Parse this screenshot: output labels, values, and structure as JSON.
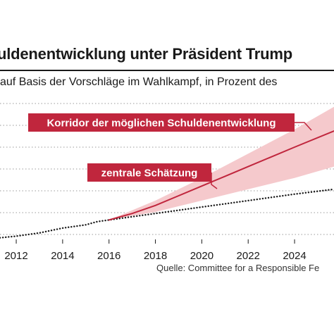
{
  "chart_data": {
    "type": "line",
    "title": "uldenentwicklung unter Präsident Trump",
    "subtitle": "auf Basis der Vorschläge im Wahlkampf, in Prozent des",
    "x_ticks": [
      "2012",
      "2014",
      "2016",
      "2018",
      "2020",
      "2022",
      "2024"
    ],
    "xlim": [
      2011.3,
      2025.7
    ],
    "ylim": [
      70,
      112
    ],
    "grid": true,
    "series": [
      {
        "name": "",
        "style": "dotted",
        "color": "#1a1a1a",
        "points": [
          [
            2011.3,
            70.5
          ],
          [
            2012,
            71
          ],
          [
            2013,
            72
          ],
          [
            2014,
            73.5
          ],
          [
            2015,
            74.5
          ],
          [
            2015.5,
            75.5
          ],
          [
            2016,
            76
          ],
          [
            2017,
            77
          ],
          [
            2018,
            78
          ],
          [
            2019,
            79
          ],
          [
            2020,
            80
          ],
          [
            2021,
            81
          ],
          [
            2022,
            82
          ],
          [
            2023,
            83
          ],
          [
            2024,
            84
          ],
          [
            2025.7,
            85.5
          ]
        ]
      },
      {
        "name": "zentrale Schätzung",
        "style": "solid",
        "color": "#c0263d",
        "points": [
          [
            2016,
            76
          ],
          [
            2017,
            78
          ],
          [
            2018,
            80.5
          ],
          [
            2019,
            83.5
          ],
          [
            2020,
            86.5
          ],
          [
            2021,
            89.5
          ],
          [
            2022,
            92.5
          ],
          [
            2023,
            95.5
          ],
          [
            2024,
            98.5
          ],
          [
            2025.7,
            103.5
          ]
        ]
      }
    ],
    "band": {
      "name": "Korridor der möglichen Schuldenentwicklung",
      "color": "#f5c9cc",
      "upper": [
        [
          2016,
          76
        ],
        [
          2018,
          82
        ],
        [
          2020,
          89
        ],
        [
          2022,
          96.5
        ],
        [
          2024,
          104
        ],
        [
          2025.7,
          111
        ]
      ],
      "lower": [
        [
          2016,
          76
        ],
        [
          2018,
          78.5
        ],
        [
          2020,
          82
        ],
        [
          2022,
          85.5
        ],
        [
          2024,
          89
        ],
        [
          2025.7,
          92.5
        ]
      ]
    },
    "annotations": [
      {
        "text": "Korridor der möglichen Schuldenentwicklung",
        "color": "#c0263d"
      },
      {
        "text": "zentrale Schätzung",
        "color": "#c0263d"
      }
    ]
  },
  "source": "Quelle: Committee for a Responsible Fe"
}
